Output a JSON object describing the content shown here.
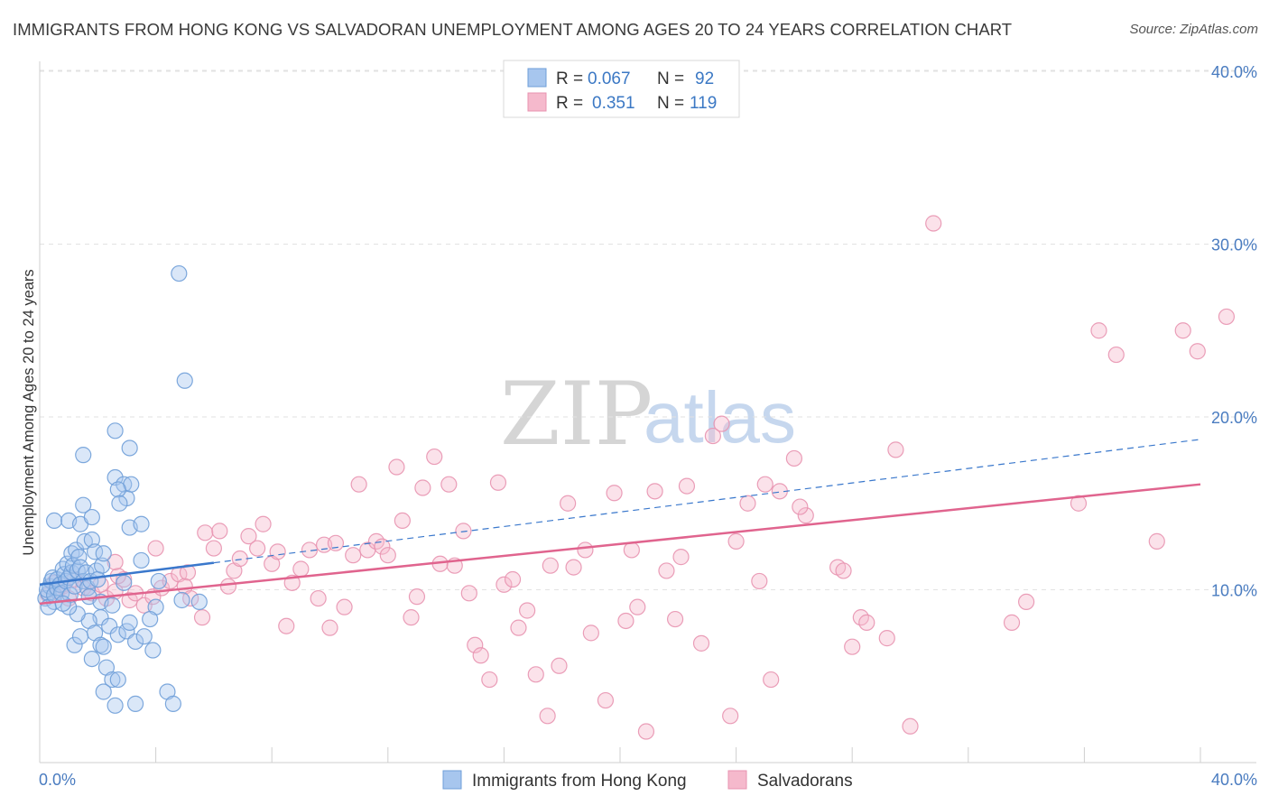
{
  "header": {
    "title": "IMMIGRANTS FROM HONG KONG VS SALVADORAN UNEMPLOYMENT AMONG AGES 20 TO 24 YEARS CORRELATION CHART",
    "source": "Source: ZipAtlas.com"
  },
  "watermark": {
    "zip": "ZIP",
    "atlas": "atlas"
  },
  "colors": {
    "blue_fill": "#a7c6ee",
    "blue_stroke": "#6f9fd8",
    "blue_line": "#3a78cc",
    "pink_fill": "#f5b9cc",
    "pink_stroke": "#e893b0",
    "pink_line": "#e0648e",
    "grid": "#e2e2e2",
    "tick_text": "#4a7cc0"
  },
  "legend": {
    "rows": [
      {
        "r_label": "R =",
        "r_value": "0.067",
        "n_label": "N =",
        "n_value": "92",
        "swatch": "blue"
      },
      {
        "r_label": "R =",
        "r_value": "0.351",
        "n_label": "N =",
        "n_value": "119",
        "swatch": "pink"
      }
    ]
  },
  "chart_data": {
    "type": "scatter",
    "title": "IMMIGRANTS FROM HONG KONG VS SALVADORAN UNEMPLOYMENT AMONG AGES 20 TO 24 YEARS CORRELATION CHART",
    "xlabel": "",
    "ylabel": "Unemployment Among Ages 20 to 24 years",
    "xlim": [
      0,
      40
    ],
    "ylim": [
      0,
      40
    ],
    "x_tick_labels": [
      "0.0%",
      "40.0%"
    ],
    "y_tick_labels": [
      "10.0%",
      "20.0%",
      "30.0%",
      "40.0%"
    ],
    "y_tick_values": [
      10,
      20,
      30,
      40
    ],
    "grid": true,
    "legend_position": "top-center",
    "series": [
      {
        "name": "Immigrants from Hong Kong",
        "color": "blue",
        "trend": {
          "x0": 0,
          "y0": 10.3,
          "x1": 40,
          "y1": 18.7,
          "solid_until": 6.0
        },
        "points": [
          [
            0.2,
            9.5
          ],
          [
            0.3,
            9.8
          ],
          [
            0.35,
            10.2
          ],
          [
            0.4,
            10.5
          ],
          [
            0.5,
            9.3
          ],
          [
            0.3,
            9.0
          ],
          [
            0.25,
            10.0
          ],
          [
            0.45,
            10.7
          ],
          [
            0.5,
            9.7
          ],
          [
            0.6,
            10.1
          ],
          [
            0.6,
            10.6
          ],
          [
            0.7,
            10.3
          ],
          [
            0.75,
            9.8
          ],
          [
            0.8,
            11.2
          ],
          [
            0.85,
            10.9
          ],
          [
            0.9,
            10.5
          ],
          [
            0.95,
            11.5
          ],
          [
            1.0,
            10.7
          ],
          [
            1.05,
            9.7
          ],
          [
            1.1,
            11.0
          ],
          [
            1.1,
            12.1
          ],
          [
            1.15,
            11.4
          ],
          [
            1.2,
            10.2
          ],
          [
            1.25,
            12.3
          ],
          [
            1.3,
            11.1
          ],
          [
            1.35,
            11.9
          ],
          [
            1.4,
            11.3
          ],
          [
            1.5,
            10.5
          ],
          [
            1.55,
            12.8
          ],
          [
            1.6,
            11.0
          ],
          [
            1.65,
            10.1
          ],
          [
            1.7,
            9.6
          ],
          [
            1.75,
            10.5
          ],
          [
            1.8,
            12.9
          ],
          [
            1.9,
            12.2
          ],
          [
            1.95,
            11.1
          ],
          [
            2.0,
            10.6
          ],
          [
            2.1,
            9.3
          ],
          [
            2.15,
            11.4
          ],
          [
            2.2,
            12.1
          ],
          [
            0.5,
            14.0
          ],
          [
            1.0,
            14.0
          ],
          [
            1.4,
            13.8
          ],
          [
            1.5,
            14.9
          ],
          [
            1.8,
            14.2
          ],
          [
            1.5,
            17.8
          ],
          [
            2.6,
            19.2
          ],
          [
            3.1,
            18.2
          ],
          [
            2.6,
            16.5
          ],
          [
            2.9,
            16.1
          ],
          [
            3.0,
            15.3
          ],
          [
            3.15,
            16.1
          ],
          [
            2.7,
            15.8
          ],
          [
            2.75,
            15.0
          ],
          [
            3.1,
            13.6
          ],
          [
            3.5,
            13.8
          ],
          [
            3.5,
            11.7
          ],
          [
            2.1,
            8.4
          ],
          [
            1.7,
            8.2
          ],
          [
            1.9,
            7.5
          ],
          [
            2.4,
            7.9
          ],
          [
            2.7,
            7.4
          ],
          [
            3.0,
            7.6
          ],
          [
            3.3,
            7.0
          ],
          [
            3.6,
            7.3
          ],
          [
            3.9,
            6.5
          ],
          [
            1.3,
            8.6
          ],
          [
            1.2,
            6.8
          ],
          [
            1.4,
            7.3
          ],
          [
            1.8,
            6.0
          ],
          [
            2.1,
            6.8
          ],
          [
            2.2,
            6.7
          ],
          [
            2.3,
            5.5
          ],
          [
            2.5,
            4.8
          ],
          [
            2.7,
            4.8
          ],
          [
            2.2,
            4.1
          ],
          [
            2.6,
            3.3
          ],
          [
            3.3,
            3.4
          ],
          [
            4.4,
            4.1
          ],
          [
            4.6,
            3.4
          ],
          [
            4.9,
            9.4
          ],
          [
            5.5,
            9.3
          ],
          [
            4.0,
            9.0
          ],
          [
            4.1,
            10.5
          ],
          [
            3.8,
            8.3
          ],
          [
            1.0,
            9.0
          ],
          [
            0.8,
            9.2
          ],
          [
            4.8,
            28.3
          ],
          [
            5.0,
            22.1
          ],
          [
            2.9,
            10.4
          ],
          [
            3.1,
            8.1
          ],
          [
            2.5,
            9.1
          ]
        ]
      },
      {
        "name": "Salvadorans",
        "color": "pink",
        "trend": {
          "x0": 0,
          "y0": 9.2,
          "x1": 40,
          "y1": 16.1
        },
        "points": [
          [
            0.3,
            9.7
          ],
          [
            0.5,
            10.4
          ],
          [
            0.6,
            9.9
          ],
          [
            0.8,
            10.2
          ],
          [
            1.0,
            9.5
          ],
          [
            1.2,
            10.6
          ],
          [
            1.5,
            10.1
          ],
          [
            1.8,
            9.8
          ],
          [
            2.1,
            10.3
          ],
          [
            2.3,
            9.5
          ],
          [
            2.6,
            9.9
          ],
          [
            2.9,
            10.6
          ],
          [
            3.1,
            9.4
          ],
          [
            3.3,
            9.8
          ],
          [
            3.6,
            9.1
          ],
          [
            3.9,
            9.6
          ],
          [
            4.2,
            10.1
          ],
          [
            4.5,
            10.5
          ],
          [
            4.8,
            10.9
          ],
          [
            5.1,
            11.0
          ],
          [
            2.7,
            10.8
          ],
          [
            2.6,
            11.6
          ],
          [
            4.0,
            12.4
          ],
          [
            5.0,
            10.2
          ],
          [
            5.2,
            9.5
          ],
          [
            5.6,
            8.4
          ],
          [
            5.7,
            13.3
          ],
          [
            6.0,
            12.4
          ],
          [
            6.2,
            13.4
          ],
          [
            6.5,
            10.2
          ],
          [
            6.7,
            11.1
          ],
          [
            6.9,
            11.8
          ],
          [
            7.2,
            13.1
          ],
          [
            7.5,
            12.4
          ],
          [
            7.7,
            13.8
          ],
          [
            8.0,
            11.5
          ],
          [
            8.2,
            12.2
          ],
          [
            8.5,
            7.9
          ],
          [
            8.7,
            10.4
          ],
          [
            9.0,
            11.2
          ],
          [
            9.3,
            12.3
          ],
          [
            9.6,
            9.5
          ],
          [
            9.8,
            12.6
          ],
          [
            10.0,
            7.8
          ],
          [
            10.2,
            12.7
          ],
          [
            10.5,
            9.0
          ],
          [
            10.8,
            12.0
          ],
          [
            11.0,
            16.1
          ],
          [
            11.3,
            12.3
          ],
          [
            11.6,
            12.8
          ],
          [
            11.8,
            12.5
          ],
          [
            12.0,
            12.0
          ],
          [
            12.3,
            17.1
          ],
          [
            12.5,
            14.0
          ],
          [
            12.8,
            8.4
          ],
          [
            13.0,
            9.6
          ],
          [
            13.2,
            15.9
          ],
          [
            13.6,
            17.7
          ],
          [
            13.8,
            11.5
          ],
          [
            14.1,
            16.1
          ],
          [
            14.3,
            11.4
          ],
          [
            14.6,
            13.4
          ],
          [
            14.8,
            9.8
          ],
          [
            15.0,
            6.8
          ],
          [
            15.2,
            6.2
          ],
          [
            15.5,
            4.8
          ],
          [
            15.8,
            16.2
          ],
          [
            16.0,
            10.3
          ],
          [
            16.3,
            10.6
          ],
          [
            16.5,
            7.8
          ],
          [
            16.8,
            8.8
          ],
          [
            17.1,
            5.1
          ],
          [
            17.5,
            2.7
          ],
          [
            17.6,
            11.4
          ],
          [
            17.9,
            5.6
          ],
          [
            18.2,
            15.0
          ],
          [
            18.4,
            11.3
          ],
          [
            18.8,
            12.3
          ],
          [
            19.0,
            7.5
          ],
          [
            19.5,
            3.6
          ],
          [
            19.8,
            15.6
          ],
          [
            20.2,
            8.2
          ],
          [
            20.4,
            12.3
          ],
          [
            20.6,
            9.0
          ],
          [
            20.9,
            1.8
          ],
          [
            21.2,
            15.7
          ],
          [
            21.6,
            11.1
          ],
          [
            21.9,
            8.3
          ],
          [
            22.1,
            11.9
          ],
          [
            22.3,
            16.0
          ],
          [
            22.8,
            6.9
          ],
          [
            23.2,
            18.9
          ],
          [
            23.5,
            19.6
          ],
          [
            23.8,
            2.7
          ],
          [
            24.0,
            12.8
          ],
          [
            24.4,
            15.0
          ],
          [
            24.8,
            10.5
          ],
          [
            25.2,
            4.8
          ],
          [
            25.5,
            15.7
          ],
          [
            26.0,
            17.6
          ],
          [
            26.4,
            14.3
          ],
          [
            25.0,
            16.1
          ],
          [
            26.2,
            14.8
          ],
          [
            27.5,
            11.3
          ],
          [
            27.7,
            11.1
          ],
          [
            28.0,
            6.7
          ],
          [
            28.3,
            8.4
          ],
          [
            28.5,
            8.1
          ],
          [
            29.2,
            7.2
          ],
          [
            29.5,
            18.1
          ],
          [
            30.0,
            2.1
          ],
          [
            30.8,
            31.2
          ],
          [
            33.5,
            8.1
          ],
          [
            34.0,
            9.3
          ],
          [
            35.8,
            15.0
          ],
          [
            36.5,
            25.0
          ],
          [
            37.1,
            23.6
          ],
          [
            38.5,
            12.8
          ],
          [
            39.4,
            25.0
          ],
          [
            39.9,
            23.8
          ],
          [
            40.9,
            25.8
          ]
        ]
      }
    ]
  },
  "bottom_legend": {
    "items": [
      {
        "label": "Immigrants from Hong Kong",
        "swatch": "blue"
      },
      {
        "label": "Salvadorans",
        "swatch": "pink"
      }
    ]
  }
}
